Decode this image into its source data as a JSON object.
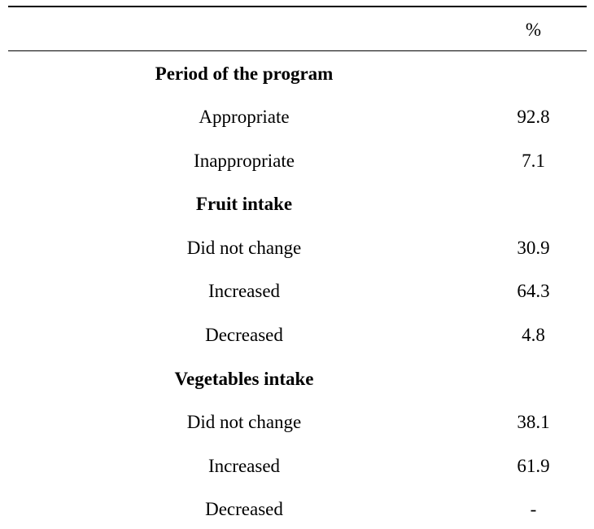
{
  "table": {
    "header": {
      "label": "",
      "value": "%"
    },
    "rows": [
      {
        "label": "Period of the program",
        "value": "",
        "kind": "section"
      },
      {
        "label": "Appropriate",
        "value": "92.8",
        "kind": "item"
      },
      {
        "label": "Inappropriate",
        "value": "7.1",
        "kind": "item"
      },
      {
        "label": "Fruit intake",
        "value": "",
        "kind": "section"
      },
      {
        "label": "Did not change",
        "value": "30.9",
        "kind": "item"
      },
      {
        "label": "Increased",
        "value": "64.3",
        "kind": "item"
      },
      {
        "label": "Decreased",
        "value": "4.8",
        "kind": "item"
      },
      {
        "label": "Vegetables intake",
        "value": "",
        "kind": "section"
      },
      {
        "label": "Did not change",
        "value": "38.1",
        "kind": "item"
      },
      {
        "label": "Increased",
        "value": "61.9",
        "kind": "item"
      },
      {
        "label": "Decreased",
        "value": "-",
        "kind": "item"
      }
    ]
  }
}
